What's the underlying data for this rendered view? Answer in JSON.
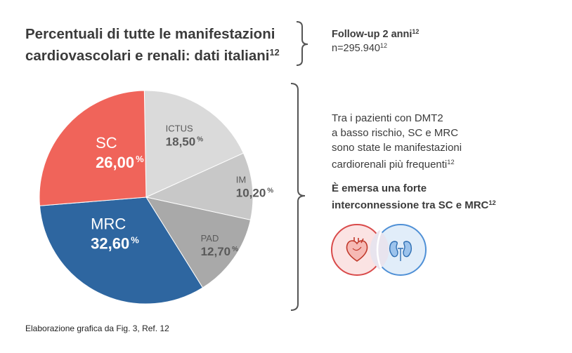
{
  "title_line1": "Percentuali di tutte le manifestazioni",
  "title_line2": "cardiovascolari e renali: dati italiani",
  "title_ref": "12",
  "followup": {
    "label": "Follow-up 2 anni",
    "ref": "12",
    "n_text": "n=295.940",
    "n_ref": "12"
  },
  "description": {
    "line1": "Tra i pazienti con DMT2",
    "line2": "a basso rischio, SC e MRC",
    "line3": "sono state le manifestazioni",
    "line4": "cardiorenali più frequenti",
    "ref": "12"
  },
  "highlight": {
    "line1": "È emersa una forte",
    "line2": "interconnessione tra SC e MRC",
    "ref": "12"
  },
  "footer": "Elaborazione grafica da Fig. 3, Ref. 12",
  "icons": [
    "heart-icon",
    "kidneys-icon"
  ],
  "chart_data": {
    "type": "pie",
    "slices": [
      {
        "label": "ICTUS",
        "value": 18.5,
        "display": "18,50",
        "color": "#dadada",
        "text_color": "#5a5a5a"
      },
      {
        "label": "IM",
        "value": 10.2,
        "display": "10,20",
        "color": "#c8c8c8",
        "text_color": "#5a5a5a"
      },
      {
        "label": "PAD",
        "value": 12.7,
        "display": "12,70",
        "color": "#a9a9a9",
        "text_color": "#5a5a5a"
      },
      {
        "label": "MRC",
        "value": 32.6,
        "display": "32,60",
        "color": "#2e66a0",
        "text_color": "#ffffff"
      },
      {
        "label": "SC",
        "value": 26.0,
        "display": "26,00",
        "color": "#f0645a",
        "text_color": "#ffffff"
      }
    ],
    "unit": "%"
  }
}
